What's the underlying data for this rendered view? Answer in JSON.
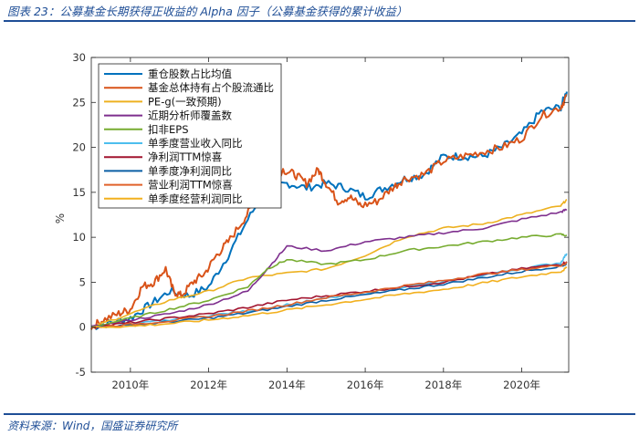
{
  "header": {
    "caption": "图表 23：公募基金长期获得正收益的 Alpha 因子（公募基金获得的累计收益）"
  },
  "footer": {
    "source": "资料来源：Wind，国盛证券研究所"
  },
  "chart_data": {
    "type": "line",
    "title": "",
    "xlabel": "",
    "ylabel": "%",
    "ylim": [
      -5,
      30
    ],
    "yticks": [
      -5,
      0,
      5,
      10,
      15,
      20,
      25,
      30
    ],
    "xlim": [
      2009.0,
      2021.2
    ],
    "xticks": [
      {
        "value": 2010,
        "label": "2010年"
      },
      {
        "value": 2012,
        "label": "2012年"
      },
      {
        "value": 2014,
        "label": "2014年"
      },
      {
        "value": 2016,
        "label": "2016年"
      },
      {
        "value": 2018,
        "label": "2018年"
      },
      {
        "value": 2020,
        "label": "2020年"
      }
    ],
    "grid": false,
    "legend_position": "top-left",
    "series": [
      {
        "name": "重仓股数占比均值",
        "color": "#0072bd",
        "x": [
          2009.0,
          2009.5,
          2010.0,
          2010.5,
          2011.0,
          2011.5,
          2012.0,
          2012.5,
          2013.0,
          2013.5,
          2014.0,
          2014.5,
          2015.0,
          2015.5,
          2016.0,
          2016.5,
          2017.0,
          2017.5,
          2018.0,
          2018.5,
          2019.0,
          2019.5,
          2020.0,
          2020.5,
          2021.0,
          2021.15
        ],
        "y": [
          0,
          0.5,
          1.0,
          2.5,
          4.0,
          3.5,
          4.5,
          8.0,
          12.0,
          15.5,
          16.0,
          15.5,
          16.0,
          15.5,
          14.5,
          15.5,
          16.5,
          17.0,
          19.0,
          19.0,
          19.0,
          20.0,
          21.5,
          24.0,
          24.5,
          26.2
        ]
      },
      {
        "name": "基金总体持有占个股流通比",
        "color": "#d95319",
        "x": [
          2009.0,
          2009.3,
          2009.7,
          2010.0,
          2010.3,
          2010.6,
          2010.9,
          2011.1,
          2011.3,
          2011.6,
          2011.9,
          2012.2,
          2012.5,
          2012.9,
          2013.2,
          2013.5,
          2013.9,
          2014.2,
          2014.5,
          2014.8,
          2015.0,
          2015.3,
          2015.6,
          2015.9,
          2016.3,
          2016.7,
          2017.0,
          2017.5,
          2018.0,
          2018.5,
          2019.0,
          2019.5,
          2020.0,
          2020.5,
          2021.0,
          2021.15
        ],
        "y": [
          0,
          0.8,
          1.5,
          2.0,
          4.5,
          5.0,
          6.5,
          4.0,
          3.5,
          5.0,
          6.0,
          8.0,
          9.5,
          12.0,
          14.0,
          16.0,
          17.5,
          17.0,
          16.0,
          17.5,
          16.0,
          14.0,
          14.5,
          13.5,
          14.0,
          15.5,
          16.5,
          17.0,
          18.5,
          19.0,
          19.5,
          20.0,
          21.0,
          23.5,
          24.5,
          25.8
        ]
      },
      {
        "name": "PE-g(一致预期)",
        "color": "#edb120",
        "x": [
          2009.0,
          2010.0,
          2011.0,
          2012.0,
          2013.0,
          2014.0,
          2015.0,
          2016.0,
          2017.0,
          2018.0,
          2019.0,
          2020.0,
          2021.0,
          2021.15
        ],
        "y": [
          0,
          1.5,
          3.0,
          4.0,
          5.5,
          6.0,
          6.5,
          8.0,
          10.0,
          11.0,
          11.5,
          12.5,
          13.5,
          14.2
        ]
      },
      {
        "name": "近期分析师覆盖数",
        "color": "#7e2f8e",
        "x": [
          2009.0,
          2010.0,
          2011.0,
          2012.0,
          2013.0,
          2013.5,
          2014.0,
          2015.0,
          2016.0,
          2017.0,
          2018.0,
          2019.0,
          2020.0,
          2021.0,
          2021.15
        ],
        "y": [
          0,
          0.8,
          1.5,
          2.5,
          4.0,
          6.5,
          9.0,
          8.5,
          9.5,
          10.0,
          10.5,
          11.0,
          12.0,
          12.8,
          13.1
        ]
      },
      {
        "name": "扣非EPS",
        "color": "#77ac30",
        "x": [
          2009.0,
          2010.0,
          2011.0,
          2012.0,
          2013.0,
          2013.5,
          2014.0,
          2015.0,
          2016.0,
          2017.0,
          2018.0,
          2019.0,
          2020.0,
          2021.0,
          2021.15
        ],
        "y": [
          0,
          1.0,
          2.0,
          3.0,
          4.5,
          6.5,
          7.5,
          7.0,
          7.5,
          8.5,
          9.0,
          9.5,
          10.0,
          10.3,
          10.2
        ]
      },
      {
        "name": "单季度营业收入同比",
        "color": "#4dbeee",
        "x": [
          2009.0,
          2010.0,
          2011.0,
          2012.0,
          2013.0,
          2014.0,
          2015.0,
          2016.0,
          2017.0,
          2018.0,
          2019.0,
          2020.0,
          2021.0,
          2021.15
        ],
        "y": [
          0,
          0.3,
          0.8,
          1.3,
          1.8,
          2.5,
          3.2,
          3.8,
          4.5,
          5.0,
          5.8,
          6.5,
          7.2,
          8.2
        ]
      },
      {
        "name": "净利润TTM惊喜",
        "color": "#a2142f",
        "x": [
          2009.0,
          2010.0,
          2011.0,
          2012.0,
          2013.0,
          2014.0,
          2015.0,
          2016.0,
          2017.0,
          2018.0,
          2019.0,
          2020.0,
          2021.0,
          2021.15
        ],
        "y": [
          0,
          0.5,
          1.0,
          1.5,
          2.2,
          3.0,
          3.5,
          4.0,
          4.5,
          5.0,
          5.8,
          6.5,
          7.0,
          7.3
        ]
      },
      {
        "name": "单季度净利润同比",
        "color": "#0b5fa5",
        "x": [
          2009.0,
          2010.0,
          2011.0,
          2012.0,
          2013.0,
          2014.0,
          2015.0,
          2016.0,
          2017.0,
          2018.0,
          2019.0,
          2020.0,
          2021.0,
          2021.15
        ],
        "y": [
          0,
          0.2,
          0.6,
          1.0,
          1.6,
          2.3,
          3.0,
          3.6,
          4.2,
          4.8,
          5.5,
          6.2,
          6.8,
          7.0
        ]
      },
      {
        "name": "营业利润TTM惊喜",
        "color": "#e0612a",
        "x": [
          2009.0,
          2010.0,
          2011.0,
          2012.0,
          2013.0,
          2014.0,
          2015.0,
          2016.0,
          2017.0,
          2018.0,
          2019.0,
          2020.0,
          2021.0,
          2021.15
        ],
        "y": [
          0,
          0.3,
          0.7,
          1.2,
          1.8,
          2.5,
          3.3,
          3.9,
          4.6,
          5.2,
          5.9,
          6.4,
          6.9,
          7.1
        ]
      },
      {
        "name": "单季度经营利润同比",
        "color": "#f2b01e",
        "x": [
          2009.0,
          2010.0,
          2011.0,
          2012.0,
          2013.0,
          2014.0,
          2015.0,
          2016.0,
          2017.0,
          2018.0,
          2019.0,
          2020.0,
          2021.0,
          2021.15
        ],
        "y": [
          0,
          0.1,
          0.4,
          0.8,
          1.3,
          1.9,
          2.5,
          3.1,
          3.7,
          4.2,
          4.9,
          5.6,
          6.2,
          6.6
        ]
      }
    ]
  }
}
